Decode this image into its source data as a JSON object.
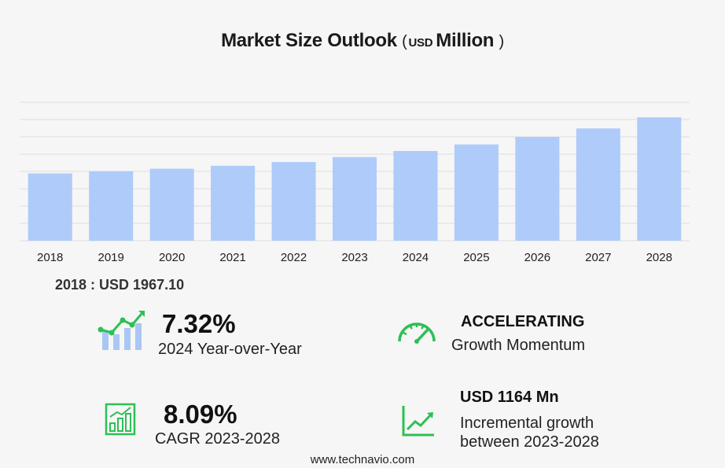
{
  "header": {
    "title_main": "Market Size Outlook",
    "title_paren_open": "(",
    "title_unit_prefix": "USD",
    "title_unit": "Million",
    "title_paren_close": ")"
  },
  "chart_data": {
    "type": "bar",
    "title": "Market Size Outlook ( USD Million )",
    "categories": [
      "2018",
      "2019",
      "2020",
      "2021",
      "2022",
      "2023",
      "2024",
      "2025",
      "2026",
      "2027",
      "2028"
    ],
    "values": [
      1967.1,
      2035,
      2105,
      2190,
      2300,
      2445,
      2624,
      2816,
      3037,
      3283,
      3609
    ],
    "ylim": [
      0,
      4050
    ],
    "grid": true,
    "bar_color": "#aecbfa",
    "grid_color": "#dddddd"
  },
  "base_year": {
    "text": "2018 : USD  1967.10"
  },
  "stats": {
    "yoy": {
      "value": "7.32%",
      "label": "2024 Year-over-Year",
      "icon": "growth-chart-icon"
    },
    "momentum": {
      "head": "ACCELERATING",
      "label": "Growth Momentum",
      "icon": "speedometer-icon"
    },
    "cagr": {
      "value": "8.09%",
      "label": "CAGR 2023-2028",
      "icon": "bar-chart-icon"
    },
    "incremental": {
      "head": "USD 1164 Mn",
      "label_line1": "Incremental growth",
      "label_line2": "between 2023-2028",
      "icon": "trend-up-icon"
    }
  },
  "colors": {
    "accent_green": "#2fbf55",
    "icon_blue": "#a9c7f5"
  },
  "footer": {
    "url": "www.technavio.com"
  }
}
